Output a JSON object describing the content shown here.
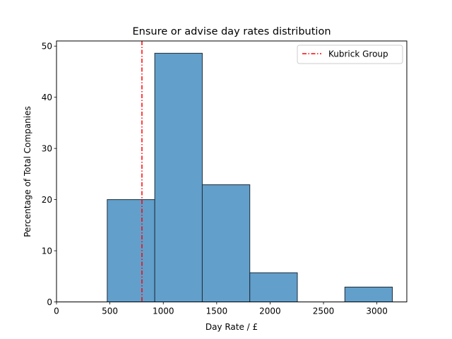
{
  "chart_data": {
    "type": "bar",
    "title": "Ensure or advise day rates distribution",
    "xlabel": "Day Rate / £",
    "ylabel": "Percentage of Total Companies",
    "xlim": [
      0,
      3280
    ],
    "ylim": [
      0,
      51
    ],
    "xticks": [
      0,
      500,
      1000,
      1500,
      2000,
      2500,
      3000
    ],
    "yticks": [
      0,
      10,
      20,
      30,
      40,
      50
    ],
    "bins": [
      {
        "start": 475,
        "end": 920,
        "value": 20.0
      },
      {
        "start": 920,
        "end": 1365,
        "value": 48.6
      },
      {
        "start": 1365,
        "end": 1810,
        "value": 22.9
      },
      {
        "start": 1810,
        "end": 2255,
        "value": 5.7
      },
      {
        "start": 2255,
        "end": 2700,
        "value": 0
      },
      {
        "start": 2700,
        "end": 3145,
        "value": 2.9
      }
    ],
    "bar_color": "#629fcb",
    "reference_line": {
      "label": "Kubrick Group",
      "x": 800,
      "color": "#ff0000",
      "style": "dash-dot"
    },
    "legend": {
      "position": "top-right",
      "entries": [
        "Kubrick Group"
      ]
    },
    "grid": false
  }
}
